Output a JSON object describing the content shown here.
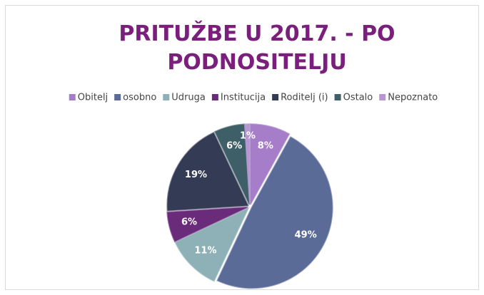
{
  "chart_data": {
    "type": "pie",
    "title": "PRITUŽBE U 2017. - PO PODNOSITELJU",
    "categories": [
      "Obitelj",
      "osobno",
      "Udruga",
      "Institucija",
      "Roditelj (i)",
      "Ostalo",
      "Nepoznato"
    ],
    "values": [
      8,
      49,
      11,
      6,
      19,
      6,
      1
    ],
    "value_labels": [
      "8%",
      "49%",
      "11%",
      "6%",
      "19%",
      "6%",
      "1%"
    ],
    "colors": [
      "#a57dc8",
      "#5b6b97",
      "#8eb0b7",
      "#6b2b7b",
      "#343b54",
      "#3e5f67",
      "#b896d4"
    ],
    "legend": "top"
  }
}
